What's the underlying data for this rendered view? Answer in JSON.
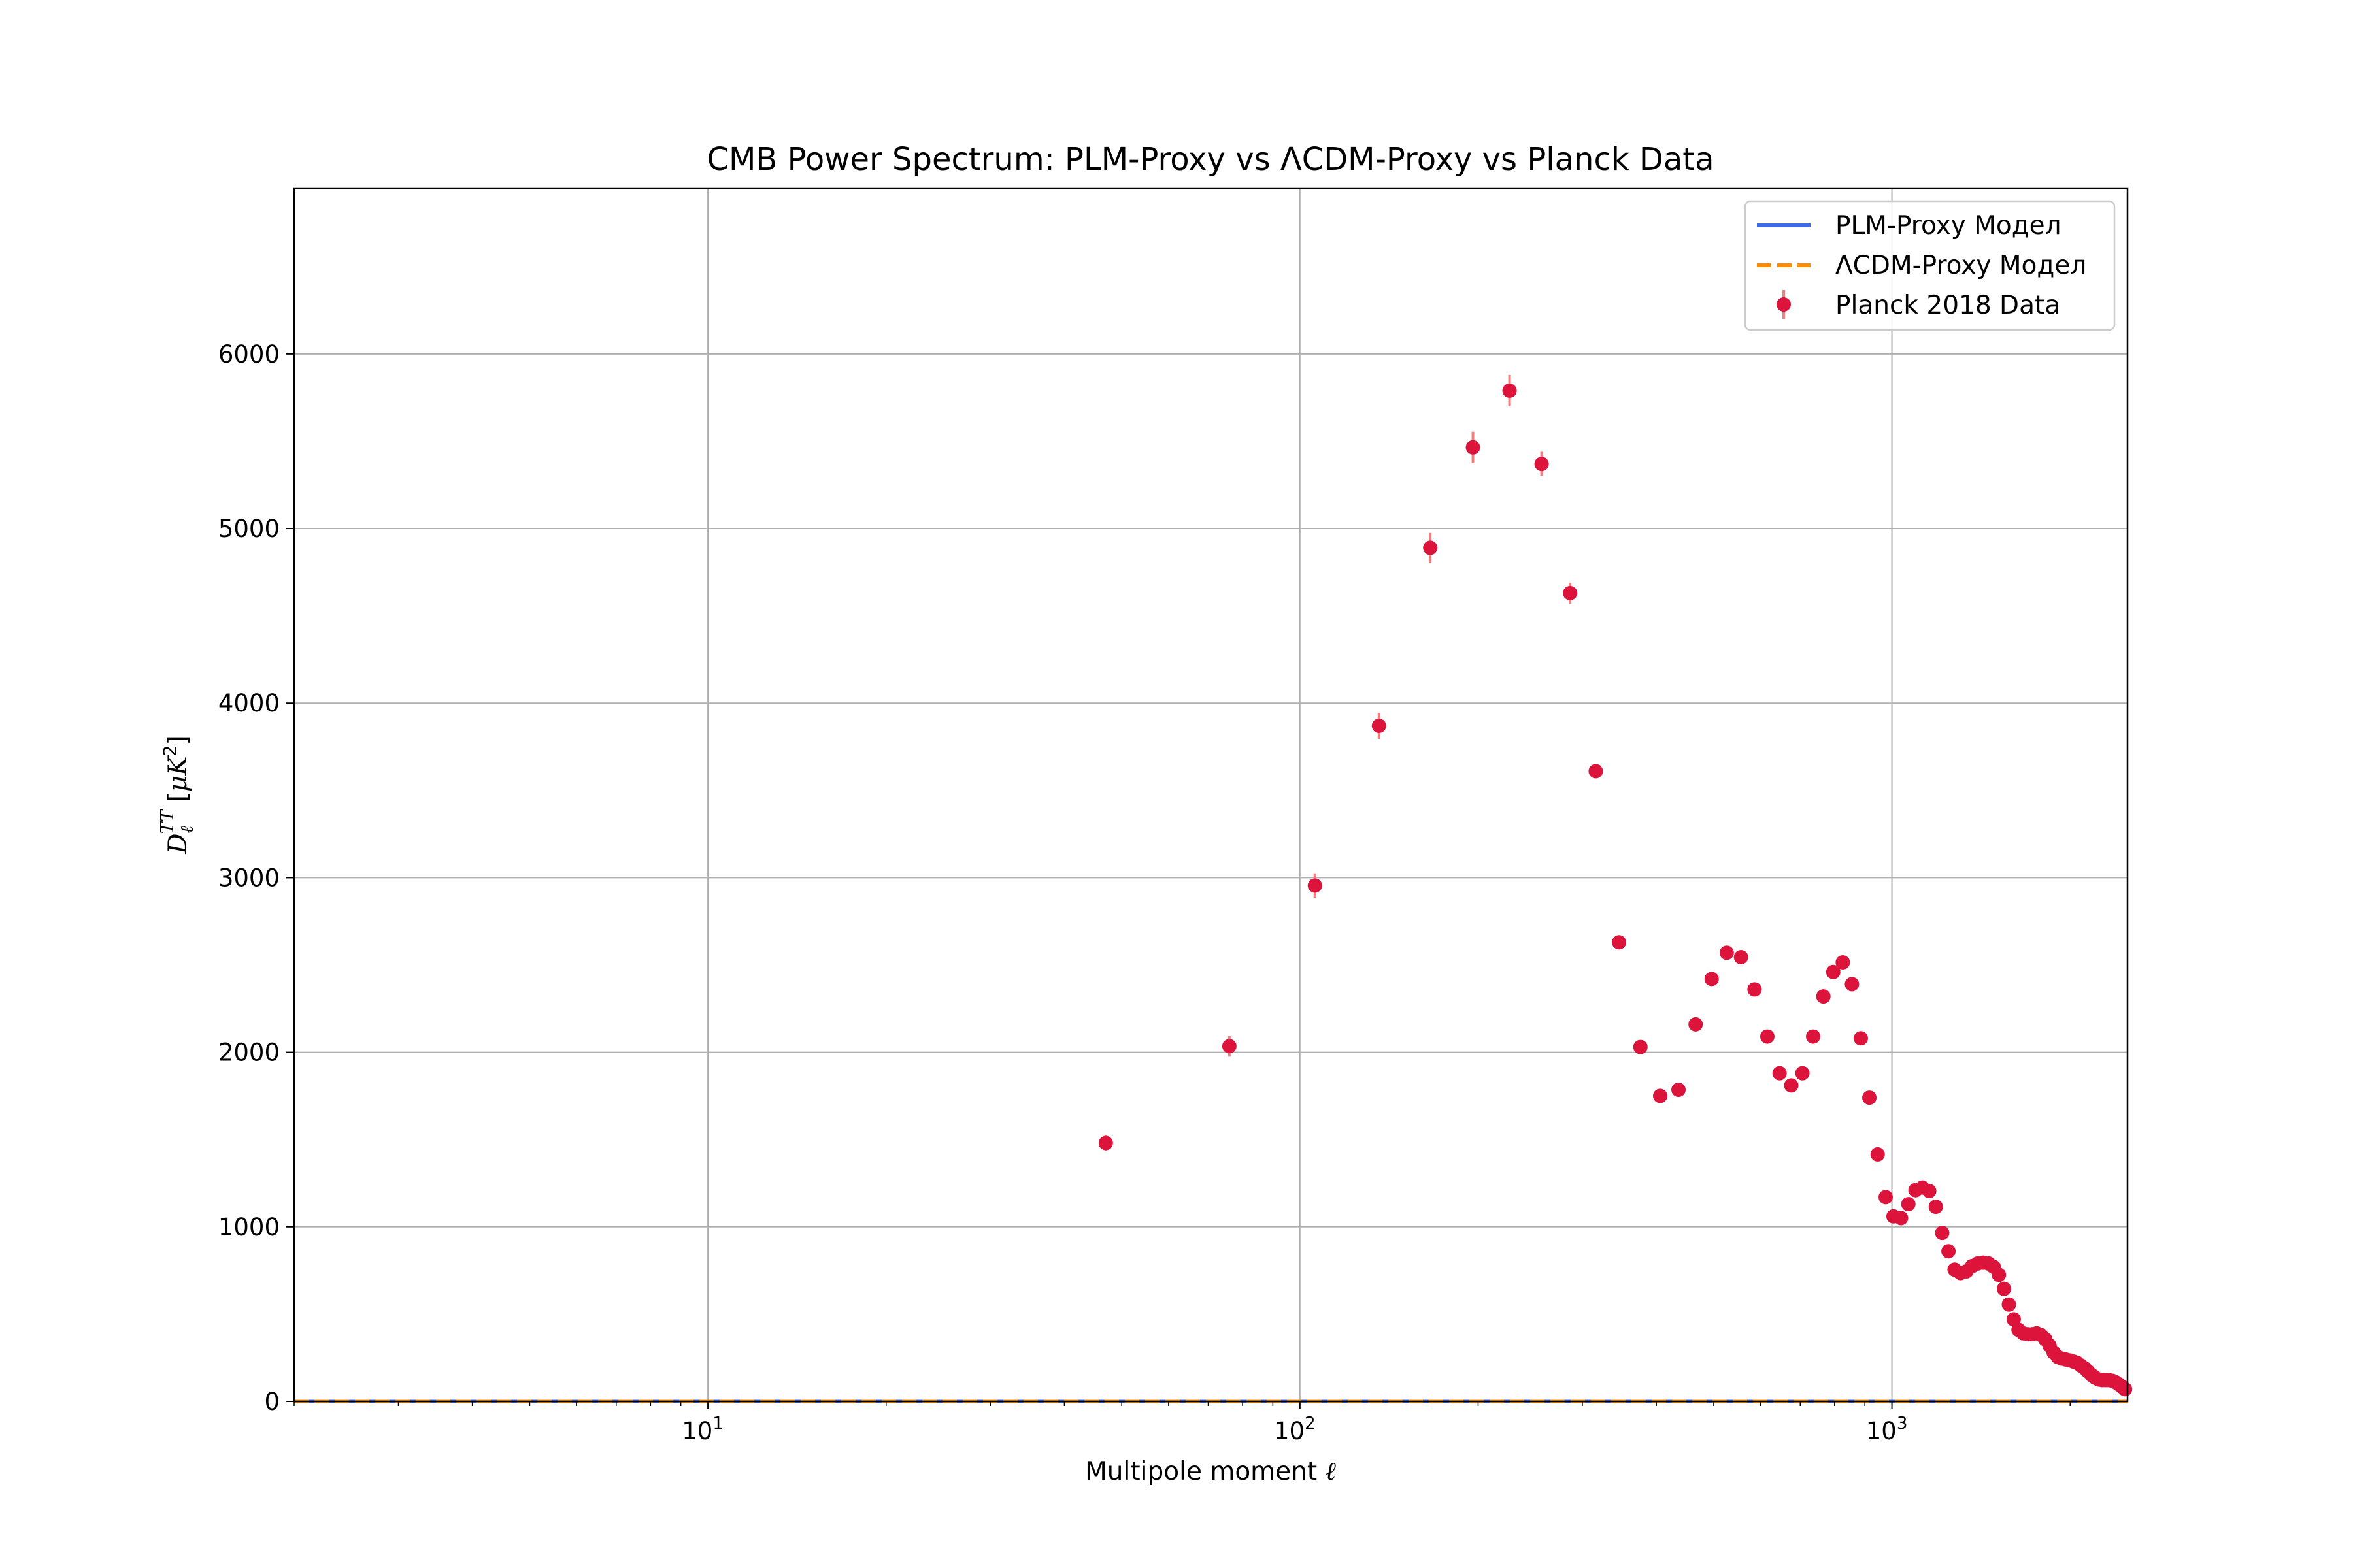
{
  "chart_data": {
    "type": "scatter",
    "title": "CMB Power Spectrum: PLM-Proxy vs ΛCDM-Proxy vs Planck Data",
    "xlabel": "Multipole moment ℓ",
    "ylabel": "DℓTT [μK²]",
    "xscale": "log",
    "xlim": [
      2,
      2500
    ],
    "ylim": [
      0,
      6950
    ],
    "grid": true,
    "legend_position": "top-right",
    "x_ticks": [
      {
        "value": 10,
        "label": "10",
        "exp": "1"
      },
      {
        "value": 100,
        "label": "10",
        "exp": "2"
      },
      {
        "value": 1000,
        "label": "10",
        "exp": "3"
      }
    ],
    "y_ticks": [
      {
        "value": 0,
        "label": "0"
      },
      {
        "value": 1000,
        "label": "1000"
      },
      {
        "value": 2000,
        "label": "2000"
      },
      {
        "value": 3000,
        "label": "3000"
      },
      {
        "value": 4000,
        "label": "4000"
      },
      {
        "value": 5000,
        "label": "5000"
      },
      {
        "value": 6000,
        "label": "6000"
      }
    ],
    "series": [
      {
        "name": "PLM-Proxy Модел",
        "kind": "line",
        "style": "solid",
        "color": "#4169e1",
        "x": [
          2,
          2500
        ],
        "y": [
          0,
          0
        ]
      },
      {
        "name": "ΛCDM-Proxy Модел",
        "kind": "line",
        "style": "dashed",
        "color": "#ff8c00",
        "x": [
          2,
          2500
        ],
        "y": [
          0,
          0
        ]
      },
      {
        "name": "Planck 2018 Data",
        "kind": "errorbar",
        "color": "#dc143c",
        "errcolor": "#f08080",
        "x": [
          47,
          76,
          106,
          136,
          166,
          196,
          226,
          256,
          286,
          316,
          346,
          376,
          406,
          436,
          466,
          496,
          526,
          556,
          586,
          616,
          646,
          676,
          706,
          736,
          766,
          796,
          826,
          856,
          886,
          916,
          946,
          976,
          1006,
          1036,
          1066,
          1096,
          1126,
          1156,
          1186,
          1216,
          1246,
          1276,
          1306,
          1336,
          1366,
          1396,
          1426,
          1456,
          1486,
          1516,
          1546,
          1576,
          1606,
          1636,
          1666,
          1696,
          1726,
          1756,
          1786,
          1816,
          1846,
          1876,
          1906,
          1936,
          1966,
          1996,
          2026,
          2056,
          2086,
          2116,
          2146,
          2176,
          2206,
          2236,
          2266,
          2296,
          2326,
          2356,
          2386,
          2416,
          2446,
          2476
        ],
        "y": [
          1480,
          2035,
          2955,
          3870,
          4890,
          5465,
          5790,
          5370,
          4630,
          3610,
          2630,
          2030,
          1750,
          1785,
          2160,
          2420,
          2570,
          2545,
          2360,
          2090,
          1880,
          1810,
          1880,
          2090,
          2320,
          2460,
          2515,
          2390,
          2080,
          1740,
          1415,
          1170,
          1060,
          1050,
          1130,
          1210,
          1225,
          1205,
          1115,
          965,
          860,
          755,
          735,
          745,
          775,
          790,
          795,
          790,
          770,
          725,
          645,
          555,
          470,
          410,
          390,
          385,
          385,
          390,
          380,
          355,
          320,
          280,
          255,
          245,
          240,
          235,
          228,
          220,
          205,
          190,
          170,
          150,
          135,
          125,
          122,
          122,
          122,
          118,
          110,
          98,
          85,
          70
        ],
        "err": [
          45,
          60,
          70,
          75,
          85,
          90,
          90,
          70,
          60,
          30,
          15,
          15,
          10,
          10,
          10,
          10,
          10,
          10,
          10,
          8,
          8,
          8,
          8,
          8,
          8,
          8,
          8,
          8,
          8,
          8,
          8,
          6,
          6,
          6,
          6,
          6,
          6,
          6,
          6,
          6,
          6,
          6,
          6,
          6,
          6,
          6,
          6,
          6,
          6,
          6,
          6,
          6,
          6,
          6,
          6,
          6,
          6,
          6,
          6,
          6,
          6,
          6,
          6,
          6,
          6,
          6,
          6,
          6,
          6,
          6,
          6,
          6,
          6,
          6,
          6,
          6,
          6,
          6,
          6,
          6,
          6,
          6
        ]
      }
    ]
  }
}
